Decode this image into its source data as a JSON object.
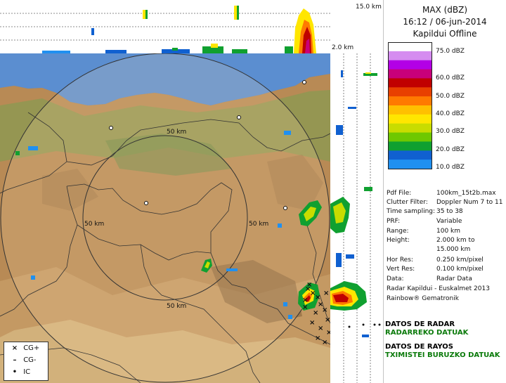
{
  "panel": {
    "title": "MAX (dBZ)",
    "datetime": "16:12 / 06-jun-2014",
    "radar_status": "Kapildui Offline"
  },
  "legend": {
    "labels": [
      "75.0 dBZ",
      "60.0 dBZ",
      "50.0 dBZ",
      "40.0 dBZ",
      "30.0 dBZ",
      "20.0 dBZ",
      "10.0 dBZ"
    ],
    "colors": [
      "#ffffff",
      "#d58cf0",
      "#b300e6",
      "#c8007a",
      "#c00000",
      "#e84000",
      "#ff7a00",
      "#ffc000",
      "#ffe600",
      "#c8dc00",
      "#6ec800",
      "#10a030",
      "#1060d0",
      "#2090f0"
    ]
  },
  "metadata": [
    {
      "key": "Pdf File:",
      "value": "100km_15t2b.max"
    },
    {
      "key": "Clutter Filter:",
      "value": "Doppler Num 7 to 11"
    },
    {
      "key": "Time sampling:",
      "value": "35 to 38"
    },
    {
      "key": "PRF:",
      "value": "Variable"
    },
    {
      "key": "Range:",
      "value": "100 km"
    },
    {
      "key": "Height:",
      "value": "2.000 km to"
    },
    {
      "key": "",
      "value": "15.000 km"
    },
    {
      "key": "Hor Res:",
      "value": "0.250 km/pixel"
    },
    {
      "key": "Vert Res:",
      "value": "0.100 km/pixel"
    },
    {
      "key": "Data:",
      "value": "Radar Data"
    }
  ],
  "credits": [
    "Radar Kapildui - Euskalmet 2013",
    "Rainbow® Gematronik"
  ],
  "links": {
    "radar_es": "DATOS DE RADAR",
    "radar_eu": "RADARREKO DATUAK",
    "rayos_es": "DATOS DE RAYOS",
    "rayos_eu": "TXIMISTEI BURUZKO DATUAK"
  },
  "map": {
    "height_top": "15.0 km",
    "height_bottom": "2.0 km",
    "range_label": "50 km"
  },
  "lightning_key": [
    {
      "symbol": "×",
      "label": "CG+"
    },
    {
      "symbol": "–",
      "label": "CG-"
    },
    {
      "symbol": "•",
      "label": "IC"
    }
  ]
}
